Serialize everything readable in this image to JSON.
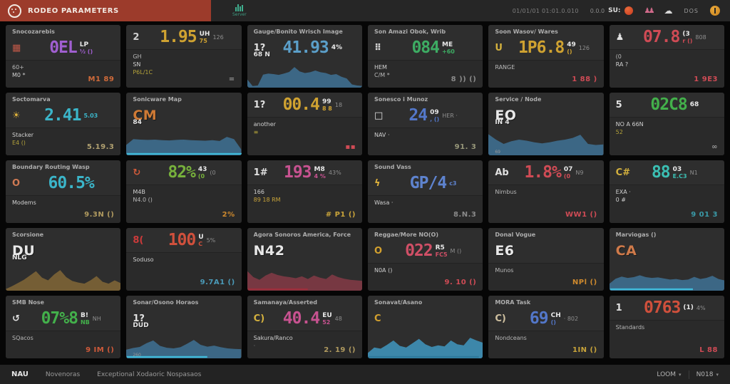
{
  "topbar": {
    "logo_text": "RODEO PARAMETERS",
    "server_label": "Server",
    "timestamp": "01/01/01 01:01.0.010",
    "version": "0.0.0",
    "user": "SU:",
    "dos": "DOS"
  },
  "footer": {
    "nav": "NAU",
    "item1": "Novenoras",
    "item2": "Exceptional Xodaoric Nospasaos",
    "zoom": "LOOM",
    "page": "N018"
  },
  "colors": {
    "accent_red": "#9c3b2b",
    "card_bg": "#2e2e2e",
    "chart_steel": "#3e6d8d",
    "strip_cyan": "#3fb9d8"
  },
  "cards": [
    {
      "title": "Snocozarebis",
      "icon": "▦",
      "icon_color": "#c05848",
      "value": "0EL",
      "value_color": "#a05fd0",
      "unit_top": "LP",
      "unit_bottom": "½ ()",
      "aside": "",
      "subs": [
        [
          "60+",
          "#b8b8b8"
        ],
        [
          "M0 *",
          "#d0d0d0"
        ]
      ],
      "foot": [
        "M1 89",
        "#cf6a3a"
      ],
      "chart": null
    },
    {
      "title": "",
      "icon": "2",
      "icon_color": "#d0d0d0",
      "value": "1.95",
      "value_color": "#cfa231",
      "unit_top": "UH",
      "unit_bottom": "75",
      "aside": "126",
      "subs": [
        [
          "GH",
          "#b8b8b8"
        ],
        [
          "SN",
          "#d0d0d0"
        ],
        [
          "P6L/1C",
          "#b3a23a"
        ]
      ],
      "foot": [
        "=",
        "#9a9a9a"
      ],
      "chart": null
    },
    {
      "title": "Gauge/Bonito Wrisch Image",
      "icon": "1?",
      "icon_color": "#e0e0e0",
      "value": "41.93",
      "value_color": "#5b9fc9",
      "unit_top": "4%",
      "unit_bottom": "",
      "aside": "",
      "subs": [],
      "foot": null,
      "chart": {
        "color": "#3e6d8d",
        "strip": null,
        "strip_w": 0,
        "label": "68 N",
        "footnote": "",
        "points": [
          30,
          6,
          8,
          48,
          52,
          50,
          47,
          52,
          58,
          76,
          60,
          54,
          57,
          63,
          57,
          54,
          47,
          50,
          40,
          34,
          12,
          8,
          6
        ]
      }
    },
    {
      "title": "Son Amazi Obok, Wrib",
      "icon": "⠿",
      "icon_color": "#d8d8d8",
      "value": "084",
      "value_color": "#3dac63",
      "unit_top": "ME",
      "unit_bottom": "+60",
      "aside": "",
      "subs": [
        [
          "HEM",
          "#d0d0d0"
        ],
        [
          "C/M *",
          "#b8b8b8"
        ]
      ],
      "foot": [
        "8 )) ()",
        "#8a8a8a"
      ],
      "chart": null
    },
    {
      "title": "Soon Wasov/ Wares",
      "icon": "U",
      "icon_color": "#d4b13e",
      "value": "1P6.8",
      "value_color": "#cfa231",
      "unit_top": "49",
      "unit_bottom": "()",
      "aside": "126",
      "subs": [
        [
          "RANGE",
          "#b8b8b8"
        ]
      ],
      "foot": [
        "1 88 )",
        "#cf4b55"
      ],
      "chart": null
    },
    {
      "title": "",
      "icon": "♟",
      "icon_color": "#e0e0e0",
      "value": "07.8",
      "value_color": "#cf4b55",
      "unit_top": "(3",
      "unit_bottom": "r ()",
      "aside": "808",
      "subs": [
        [
          "(0",
          "#b8b8b8"
        ],
        [
          "RA ?",
          "#d0d0d0"
        ]
      ],
      "foot": [
        "1 9E3",
        "#cf4b55"
      ],
      "chart": null
    },
    {
      "title": "Soctomarva",
      "icon": "☀",
      "icon_color": "#e0b33c",
      "value": "2.41",
      "value_color": "#3bb5c9",
      "unit_top": "",
      "unit_bottom": "5.03",
      "aside": "",
      "subs": [
        [
          "Stacker",
          "#d0d0d0"
        ],
        [
          "E4 ()",
          "#b3a23a"
        ]
      ],
      "foot": [
        "5.19.3",
        "#b0a070"
      ],
      "chart": null
    },
    {
      "title": "Sonicware Map",
      "icon": "",
      "big": "CM",
      "big_color": "#cf7a35",
      "chart": {
        "color": "#3e6d8d",
        "strip": "#3fb9d8",
        "strip_w": 100,
        "label": "84",
        "footnote": "",
        "points": [
          38,
          60,
          58,
          57,
          58,
          56,
          55,
          57,
          58,
          56,
          55,
          54,
          56,
          53,
          68,
          60,
          22
        ]
      }
    },
    {
      "title": "",
      "icon": "1?",
      "icon_color": "#e0e0e0",
      "value": "00.4",
      "value_color": "#cfa231",
      "unit_top": "99",
      "unit_bottom": "8 8",
      "aside": "18",
      "subs": [
        [
          "another",
          "#d0d0d0"
        ],
        [
          "≡",
          "#b3a23a"
        ]
      ],
      "foot": [
        "▪▪",
        "#cf4b55"
      ],
      "chart": null
    },
    {
      "title": "Sonesco i Munoz",
      "icon": "□",
      "icon_color": "#e0e0e0",
      "value": "24",
      "value_color": "#5377c9",
      "unit_top": "09",
      "unit_bottom": ", ()",
      "aside": "HER ·",
      "subs": [
        [
          "NAV ·",
          "#d0d0d0"
        ]
      ],
      "foot": [
        "91. 3",
        "#98987a"
      ],
      "chart": null
    },
    {
      "title": "Service / Node",
      "big": "EO",
      "big_color": "#e8e8e8",
      "chart": {
        "color": "#3e6d8d",
        "strip": null,
        "strip_w": 0,
        "label": "IN 4",
        "footnote": "69",
        "points": [
          78,
          58,
          42,
          52,
          58,
          54,
          48,
          44,
          48,
          54,
          58,
          64,
          76,
          42,
          38,
          40
        ]
      }
    },
    {
      "title": "",
      "icon": "5",
      "icon_color": "#e0e0e0",
      "value": "02C8",
      "value_color": "#43b04b",
      "unit_top": "68",
      "unit_bottom": "",
      "aside": "",
      "subs": [
        [
          "NO A 66N",
          "#d0d0d0"
        ],
        [
          "52",
          "#b3a23a"
        ]
      ],
      "foot": [
        "∞",
        "#9a9a9a"
      ],
      "chart": null
    },
    {
      "title": "Boundary Routing Wasp",
      "icon": "O",
      "icon_color": "#d07a54",
      "value": "60.5%",
      "value_color": "#3bb5c9",
      "unit_top": "",
      "unit_bottom": "",
      "aside": "",
      "subs": [
        [
          "Modems",
          "#d0d0d0"
        ]
      ],
      "foot": [
        "9.3N ()",
        "#b09a5f"
      ],
      "chart": null
    },
    {
      "title": "",
      "icon": "↻",
      "icon_color": "#d05a3a",
      "value": "82%",
      "value_color": "#77b13c",
      "unit_top": "43",
      "unit_bottom": "(0",
      "aside": "(0",
      "subs": [
        [
          "M4B",
          "#d0d0d0"
        ],
        [
          "N4.0 ()",
          "#b8b8b8"
        ]
      ],
      "foot": [
        "2%",
        "#cf8a2e"
      ],
      "chart": null
    },
    {
      "title": "",
      "icon": "1#",
      "icon_color": "#e0e0e0",
      "value": "193",
      "value_color": "#c75290",
      "unit_top": "M8",
      "unit_bottom": "4 %",
      "aside": "43%",
      "subs": [
        [
          "166",
          "#d0d0d0"
        ],
        [
          "89 18 RM",
          "#c9a43a"
        ]
      ],
      "foot": [
        "# P1 ()",
        "#c9a43a"
      ],
      "chart": null
    },
    {
      "title": "Sound Vass",
      "icon": "ϟ",
      "icon_color": "#e0b33c",
      "value": "GP/4",
      "value_color": "#5e83cf",
      "unit_top": "",
      "unit_bottom": "c3",
      "aside": "",
      "subs": [
        [
          "Wasa ·",
          "#d0d0d0"
        ]
      ],
      "foot": [
        "8.N.3",
        "#8a8a8a"
      ],
      "chart": null
    },
    {
      "title": "",
      "icon": "Ab",
      "icon_color": "#e0e0e0",
      "value": "1.8%",
      "value_color": "#cf4b55",
      "unit_top": "07",
      "unit_bottom": "(0",
      "aside": "N9",
      "subs": [
        [
          "Nimbus",
          "#b8b8b8"
        ]
      ],
      "foot": [
        "WW1 ()",
        "#cf4b55"
      ],
      "chart": null
    },
    {
      "title": "",
      "icon": "C#",
      "icon_color": "#d4b13e",
      "value": "88",
      "value_color": "#3bbfb3",
      "unit_top": "03",
      "unit_bottom": "E.C3",
      "aside": "N1",
      "subs": [
        [
          "EXA ·",
          "#d0d0d0"
        ],
        [
          "0 #",
          "#d0d0d0"
        ]
      ],
      "foot": [
        "9 01 3",
        "#3a9aa8"
      ],
      "chart": null
    },
    {
      "title": "Scorsione",
      "big": "DU",
      "big_color": "#e8e8e8",
      "chart": {
        "color": "#7c6336",
        "strip": null,
        "strip_w": 0,
        "label": "NLG",
        "footnote": "",
        "points": [
          6,
          16,
          28,
          40,
          56,
          72,
          48,
          38,
          60,
          76,
          50,
          36,
          30,
          26,
          38,
          54,
          33,
          26,
          38,
          28
        ]
      }
    },
    {
      "title": "",
      "icon": "8(",
      "icon_color": "#cc3a3a",
      "value": "100",
      "value_color": "#d0503c",
      "unit_top": "U",
      "unit_bottom": "C",
      "aside": "5%",
      "subs": [
        [
          "Soduso",
          "#d0d0d0"
        ]
      ],
      "foot": [
        "9.7A1 ()",
        "#4a9ab8"
      ],
      "chart": null
    },
    {
      "title": "Agora Sonoros America, Force",
      "big": "N42",
      "big_color": "#e8e8e8",
      "chart": {
        "color": "#7e3a44",
        "strip": "#9c2e3c",
        "strip_w": 52,
        "label": "",
        "footnote": "",
        "points": [
          72,
          50,
          40,
          56,
          66,
          58,
          53,
          50,
          46,
          53,
          43,
          56,
          48,
          43,
          60,
          50,
          44,
          40,
          38,
          36
        ]
      }
    },
    {
      "title": "Reggae/More NO(O)",
      "icon": "O",
      "icon_color": "#d4a12e",
      "value": "022",
      "value_color": "#d04f66",
      "unit_top": "R5",
      "unit_bottom": "FC5",
      "aside": "M ()",
      "subs": [
        [
          "N0A ()",
          "#d0d0d0"
        ]
      ],
      "foot": [
        "9. 10 ()",
        "#cf4b55"
      ],
      "chart": null
    },
    {
      "title": "Donal Vogue",
      "big": "E6",
      "big_color": "#e8e8e8",
      "subs": [
        [
          "Munos",
          "#b8b8b8"
        ]
      ],
      "foot": [
        "NPl ()",
        "#cf8a2e"
      ],
      "chart": null
    },
    {
      "title": "Marviogas ()",
      "big": "CA",
      "big_color": "#cf7a4a",
      "chart": {
        "color": "#3e6d8d",
        "strip": "#3fb9d8",
        "strip_w": 72,
        "label": "",
        "footnote": "",
        "points": [
          26,
          44,
          52,
          47,
          50,
          57,
          50,
          47,
          49,
          45,
          41,
          43,
          39,
          41,
          51,
          43,
          47,
          55,
          43,
          38
        ]
      }
    },
    {
      "title": "SMB Nose",
      "icon": "↺",
      "icon_color": "#e0e0e0",
      "value": "07%8",
      "value_color": "#43b04b",
      "unit_top": "B!",
      "unit_bottom": "NB",
      "aside": "NH",
      "subs": [
        [
          "SQacos",
          "#b8b8b8"
        ]
      ],
      "foot": [
        "9 IM ()",
        "#cf5a3a"
      ],
      "chart": null
    },
    {
      "title": "Sonar/Osono Horaos",
      "icon": "1?",
      "icon_color": "#e0e0e0",
      "chart": {
        "color": "#3e6d8d",
        "strip": "#3fb9d8",
        "strip_w": 70,
        "label": "DUD",
        "footnote": "260",
        "points": [
          32,
          38,
          42,
          56,
          66,
          46,
          39,
          37,
          41,
          54,
          68,
          50,
          43,
          47,
          41,
          37,
          35,
          34
        ]
      }
    },
    {
      "title": "Samanaya/Asserted",
      "icon": "C)",
      "icon_color": "#d4b13e",
      "value": "40.4",
      "value_color": "#c75290",
      "unit_top": "EU",
      "unit_bottom": "52",
      "aside": "48",
      "subs": [
        [
          "Sakura/Ranco",
          "#d0d0d0"
        ],
        [
          "·",
          "#8a8a8a"
        ]
      ],
      "foot": [
        "2. 19 ()",
        "#b09a5f"
      ],
      "chart": null
    },
    {
      "title": "Sonavat/Asano",
      "icon": "C",
      "icon_color": "#d4a12e",
      "chart": {
        "color": "#3f8fb5",
        "strip": "#2e7a9c",
        "strip_w": 96,
        "label": "",
        "footnote": "",
        "points": [
          20,
          40,
          36,
          50,
          66,
          46,
          40,
          56,
          72,
          52,
          42,
          48,
          44,
          66,
          52,
          48,
          76,
          66,
          58
        ]
      }
    },
    {
      "title": "MORA Task",
      "icon": "C)",
      "icon_color": "#cfc0a0",
      "value": "69",
      "value_color": "#5377c9",
      "unit_top": "CH",
      "unit_bottom": "()",
      "aside": "· 802",
      "subs": [
        [
          "Nondceans",
          "#b8b8b8"
        ]
      ],
      "foot": [
        "1IN ()",
        "#c9a43a"
      ],
      "chart": null
    },
    {
      "title": "",
      "icon": "1",
      "icon_color": "#e0e0e0",
      "value": "0763",
      "value_color": "#d0503c",
      "unit_top": "(1)",
      "unit_bottom": "",
      "aside": "4%",
      "subs": [
        [
          "Standards",
          "#b8b8b8"
        ]
      ],
      "foot": [
        "L 88",
        "#cf4b55"
      ],
      "chart": null
    }
  ]
}
